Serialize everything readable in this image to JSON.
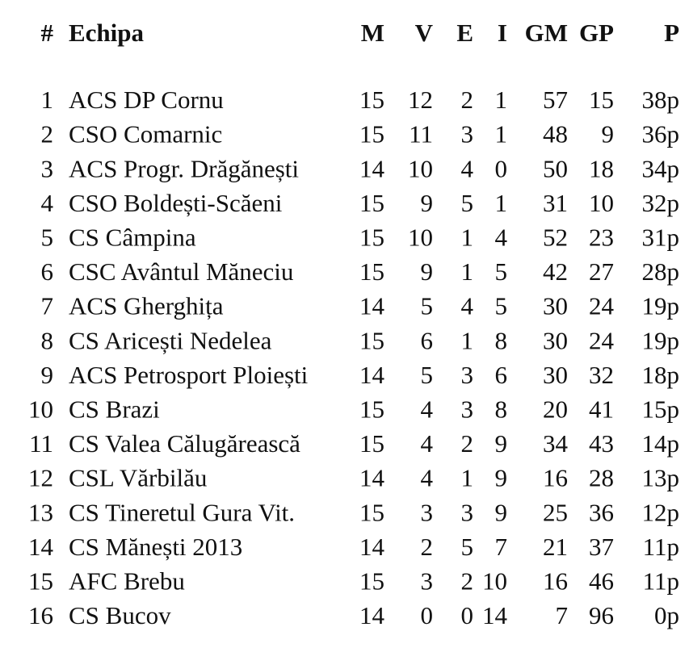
{
  "table": {
    "header": [
      "#",
      "Echipa",
      "M",
      "V",
      "E",
      "I",
      "GM",
      "GP",
      "P"
    ],
    "rows": [
      [
        "1",
        "ACS DP Cornu",
        "15",
        "12",
        "2",
        "1",
        "57",
        "15",
        "38p"
      ],
      [
        "2",
        "CSO Comarnic",
        "15",
        "11",
        "3",
        "1",
        "48",
        "9",
        "36p"
      ],
      [
        "3",
        "ACS Progr. Drăgănești",
        "14",
        "10",
        "4",
        "0",
        "50",
        "18",
        "34p"
      ],
      [
        "4",
        "CSO Boldești-Scăeni",
        "15",
        "9",
        "5",
        "1",
        "31",
        "10",
        "32p"
      ],
      [
        "5",
        "CS Câmpina",
        "15",
        "10",
        "1",
        "4",
        "52",
        "23",
        "31p"
      ],
      [
        "6",
        "CSC Avântul Măneciu",
        "15",
        "9",
        "1",
        "5",
        "42",
        "27",
        "28p"
      ],
      [
        "7",
        "ACS Gherghița",
        "14",
        "5",
        "4",
        "5",
        "30",
        "24",
        "19p"
      ],
      [
        "8",
        "CS Aricești Nedelea",
        "15",
        "6",
        "1",
        "8",
        "30",
        "24",
        "19p"
      ],
      [
        "9",
        "ACS Petrosport Ploiești",
        "14",
        "5",
        "3",
        "6",
        "30",
        "32",
        "18p"
      ],
      [
        "10",
        "CS Brazi",
        "15",
        "4",
        "3",
        "8",
        "20",
        "41",
        "15p"
      ],
      [
        "11",
        "CS Valea Călugărească",
        "15",
        "4",
        "2",
        "9",
        "34",
        "43",
        "14p"
      ],
      [
        "12",
        "CSL Vărbilău",
        "14",
        "4",
        "1",
        "9",
        "16",
        "28",
        "13p"
      ],
      [
        "13",
        "CS Tineretul Gura Vit.",
        "15",
        "3",
        "3",
        "9",
        "25",
        "36",
        "12p"
      ],
      [
        "14",
        "CS Mănești 2013",
        "14",
        "2",
        "5",
        "7",
        "21",
        "37",
        "11p"
      ],
      [
        "15",
        "AFC Brebu",
        "15",
        "3",
        "2",
        "10",
        "16",
        "46",
        "11p"
      ],
      [
        "16",
        "CS Bucov",
        "14",
        "0",
        "0",
        "14",
        "7",
        "96",
        "0p"
      ]
    ]
  }
}
